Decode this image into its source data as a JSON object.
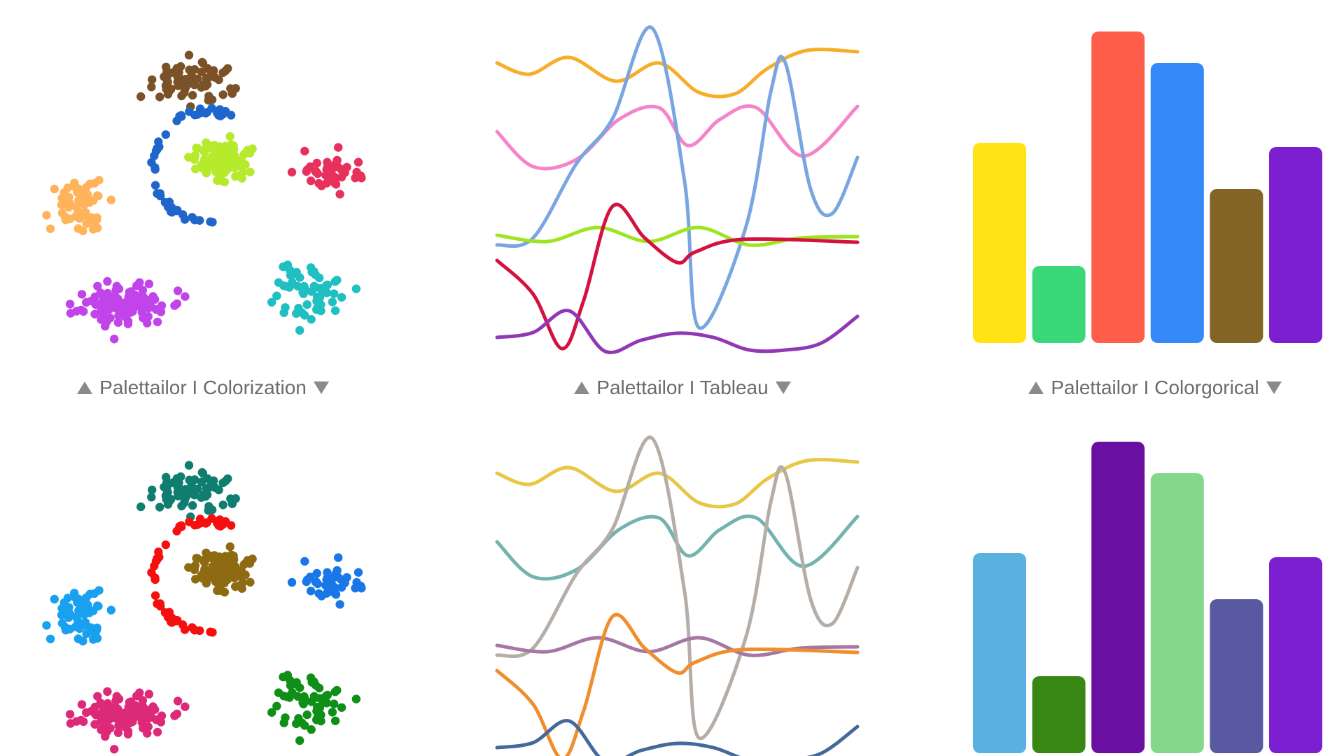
{
  "captions": [
    {
      "text": "Palettailor I Colorization"
    },
    {
      "text": "Palettailor I Tableau"
    },
    {
      "text": "Palettailor I Colorgorical"
    }
  ],
  "chart_data": [
    {
      "type": "scatter",
      "row": "top",
      "clusters": [
        {
          "shape": "blob",
          "cx": 255,
          "cy": 95,
          "rx": 115,
          "ry": 55,
          "n": 70,
          "color": "#7b5228",
          "seed": 1
        },
        {
          "shape": "ring",
          "cx": 275,
          "cy": 218,
          "rx": 75,
          "ry": 80,
          "n": 55,
          "color": "#1f66cc",
          "seed": 2
        },
        {
          "shape": "blob",
          "cx": 300,
          "cy": 210,
          "rx": 68,
          "ry": 50,
          "n": 110,
          "color": "#b6ea2c",
          "seed": 3
        },
        {
          "shape": "blob",
          "cx": 450,
          "cy": 225,
          "rx": 85,
          "ry": 50,
          "n": 42,
          "color": "#e8305c",
          "seed": 4
        },
        {
          "shape": "blob",
          "cx": 100,
          "cy": 270,
          "rx": 75,
          "ry": 70,
          "n": 55,
          "color": "#ffb45c",
          "seed": 5
        },
        {
          "shape": "blob",
          "cx": 155,
          "cy": 415,
          "rx": 120,
          "ry": 60,
          "n": 110,
          "color": "#c144ea",
          "seed": 6
        },
        {
          "shape": "blob",
          "cx": 420,
          "cy": 400,
          "rx": 100,
          "ry": 65,
          "n": 60,
          "color": "#1fbfc2",
          "seed": 7
        }
      ]
    },
    {
      "type": "line",
      "row": "top",
      "series": [
        {
          "color": "#f7ad28",
          "points": [
            [
              0,
              70
            ],
            [
              0.09,
              86
            ],
            [
              0.2,
              62
            ],
            [
              0.33,
              96
            ],
            [
              0.45,
              70
            ],
            [
              0.56,
              112
            ],
            [
              0.66,
              114
            ],
            [
              0.75,
              78
            ],
            [
              0.86,
              52
            ],
            [
              1,
              54
            ]
          ]
        },
        {
          "color": "#f584c9",
          "points": [
            [
              0,
              168
            ],
            [
              0.1,
              218
            ],
            [
              0.22,
              208
            ],
            [
              0.34,
              150
            ],
            [
              0.45,
              134
            ],
            [
              0.53,
              188
            ],
            [
              0.62,
              150
            ],
            [
              0.72,
              134
            ],
            [
              0.85,
              203
            ],
            [
              1,
              132
            ]
          ]
        },
        {
          "color": "#7aa6e0",
          "points": [
            [
              0,
              330
            ],
            [
              0.1,
              320
            ],
            [
              0.22,
              214
            ],
            [
              0.32,
              150
            ],
            [
              0.43,
              20
            ],
            [
              0.52,
              238
            ],
            [
              0.56,
              448
            ],
            [
              0.69,
              305
            ],
            [
              0.76,
              110
            ],
            [
              0.8,
              70
            ],
            [
              0.87,
              250
            ],
            [
              0.93,
              285
            ],
            [
              1,
              205
            ]
          ]
        },
        {
          "color": "#9ee51f",
          "points": [
            [
              0,
              316
            ],
            [
              0.14,
              325
            ],
            [
              0.28,
              305
            ],
            [
              0.42,
              325
            ],
            [
              0.56,
              305
            ],
            [
              0.7,
              330
            ],
            [
              0.84,
              320
            ],
            [
              1,
              318
            ]
          ]
        },
        {
          "color": "#d4123f",
          "points": [
            [
              0,
              352
            ],
            [
              0.1,
              400
            ],
            [
              0.18,
              478
            ],
            [
              0.24,
              410
            ],
            [
              0.32,
              275
            ],
            [
              0.41,
              320
            ],
            [
              0.5,
              355
            ],
            [
              0.55,
              340
            ],
            [
              0.68,
              322
            ],
            [
              1,
              326
            ]
          ]
        },
        {
          "color": "#9138b4",
          "points": [
            [
              0,
              462
            ],
            [
              0.1,
              455
            ],
            [
              0.2,
              424
            ],
            [
              0.3,
              482
            ],
            [
              0.4,
              466
            ],
            [
              0.5,
              456
            ],
            [
              0.6,
              462
            ],
            [
              0.7,
              480
            ],
            [
              0.8,
              480
            ],
            [
              0.9,
              470
            ],
            [
              1,
              432
            ]
          ]
        }
      ]
    },
    {
      "type": "bar",
      "row": "top",
      "values": [
        28.6,
        11,
        44.5,
        40,
        22,
        28
      ],
      "colors": [
        "#ffe312",
        "#3ad878",
        "#ff5f4a",
        "#3488f8",
        "#836426",
        "#7c1fd1"
      ],
      "ylim": [
        0,
        47
      ]
    },
    {
      "type": "scatter",
      "row": "bottom",
      "clusters": [
        {
          "shape": "blob",
          "cx": 255,
          "cy": 95,
          "rx": 115,
          "ry": 55,
          "n": 70,
          "color": "#0f7d70",
          "seed": 1
        },
        {
          "shape": "ring",
          "cx": 275,
          "cy": 218,
          "rx": 75,
          "ry": 80,
          "n": 55,
          "color": "#f50f0f",
          "seed": 2
        },
        {
          "shape": "blob",
          "cx": 300,
          "cy": 210,
          "rx": 68,
          "ry": 50,
          "n": 110,
          "color": "#8e6b12",
          "seed": 3
        },
        {
          "shape": "blob",
          "cx": 450,
          "cy": 225,
          "rx": 85,
          "ry": 50,
          "n": 42,
          "color": "#1977e8",
          "seed": 4
        },
        {
          "shape": "blob",
          "cx": 100,
          "cy": 270,
          "rx": 75,
          "ry": 70,
          "n": 55,
          "color": "#19a0ee",
          "seed": 5
        },
        {
          "shape": "blob",
          "cx": 155,
          "cy": 415,
          "rx": 120,
          "ry": 60,
          "n": 110,
          "color": "#dc2a78",
          "seed": 6
        },
        {
          "shape": "blob",
          "cx": 420,
          "cy": 400,
          "rx": 100,
          "ry": 65,
          "n": 60,
          "color": "#108f18",
          "seed": 7
        }
      ]
    },
    {
      "type": "line",
      "row": "bottom",
      "series": [
        {
          "color": "#e8c646",
          "points": [
            [
              0,
              70
            ],
            [
              0.09,
              86
            ],
            [
              0.2,
              62
            ],
            [
              0.33,
              96
            ],
            [
              0.45,
              70
            ],
            [
              0.56,
              112
            ],
            [
              0.66,
              114
            ],
            [
              0.75,
              78
            ],
            [
              0.86,
              52
            ],
            [
              1,
              54
            ]
          ]
        },
        {
          "color": "#74b3b0",
          "points": [
            [
              0,
              168
            ],
            [
              0.1,
              218
            ],
            [
              0.22,
              208
            ],
            [
              0.34,
              150
            ],
            [
              0.45,
              134
            ],
            [
              0.53,
              188
            ],
            [
              0.62,
              150
            ],
            [
              0.72,
              134
            ],
            [
              0.85,
              203
            ],
            [
              1,
              132
            ]
          ]
        },
        {
          "color": "#b5ada7",
          "points": [
            [
              0,
              330
            ],
            [
              0.1,
              320
            ],
            [
              0.22,
              214
            ],
            [
              0.32,
              150
            ],
            [
              0.43,
              20
            ],
            [
              0.52,
              238
            ],
            [
              0.56,
              448
            ],
            [
              0.69,
              305
            ],
            [
              0.76,
              110
            ],
            [
              0.8,
              70
            ],
            [
              0.87,
              250
            ],
            [
              0.93,
              285
            ],
            [
              1,
              205
            ]
          ]
        },
        {
          "color": "#a578a4",
          "points": [
            [
              0,
              316
            ],
            [
              0.14,
              325
            ],
            [
              0.28,
              305
            ],
            [
              0.42,
              325
            ],
            [
              0.56,
              305
            ],
            [
              0.7,
              330
            ],
            [
              0.84,
              320
            ],
            [
              1,
              318
            ]
          ]
        },
        {
          "color": "#f08d2d",
          "points": [
            [
              0,
              352
            ],
            [
              0.1,
              400
            ],
            [
              0.18,
              478
            ],
            [
              0.24,
              410
            ],
            [
              0.32,
              275
            ],
            [
              0.41,
              320
            ],
            [
              0.5,
              355
            ],
            [
              0.55,
              340
            ],
            [
              0.68,
              322
            ],
            [
              1,
              326
            ]
          ]
        },
        {
          "color": "#44699a",
          "points": [
            [
              0,
              462
            ],
            [
              0.1,
              455
            ],
            [
              0.2,
              424
            ],
            [
              0.3,
              482
            ],
            [
              0.4,
              466
            ],
            [
              0.5,
              456
            ],
            [
              0.6,
              462
            ],
            [
              0.7,
              480
            ],
            [
              0.8,
              480
            ],
            [
              0.9,
              470
            ],
            [
              1,
              432
            ]
          ]
        }
      ]
    },
    {
      "type": "bar",
      "row": "bottom",
      "values": [
        28.6,
        11,
        44.5,
        40,
        22,
        28
      ],
      "colors": [
        "#5ab1e0",
        "#388613",
        "#6a10a0",
        "#85d88b",
        "#5959a1",
        "#7c1fd1"
      ],
      "ylim": [
        0,
        47
      ]
    }
  ]
}
